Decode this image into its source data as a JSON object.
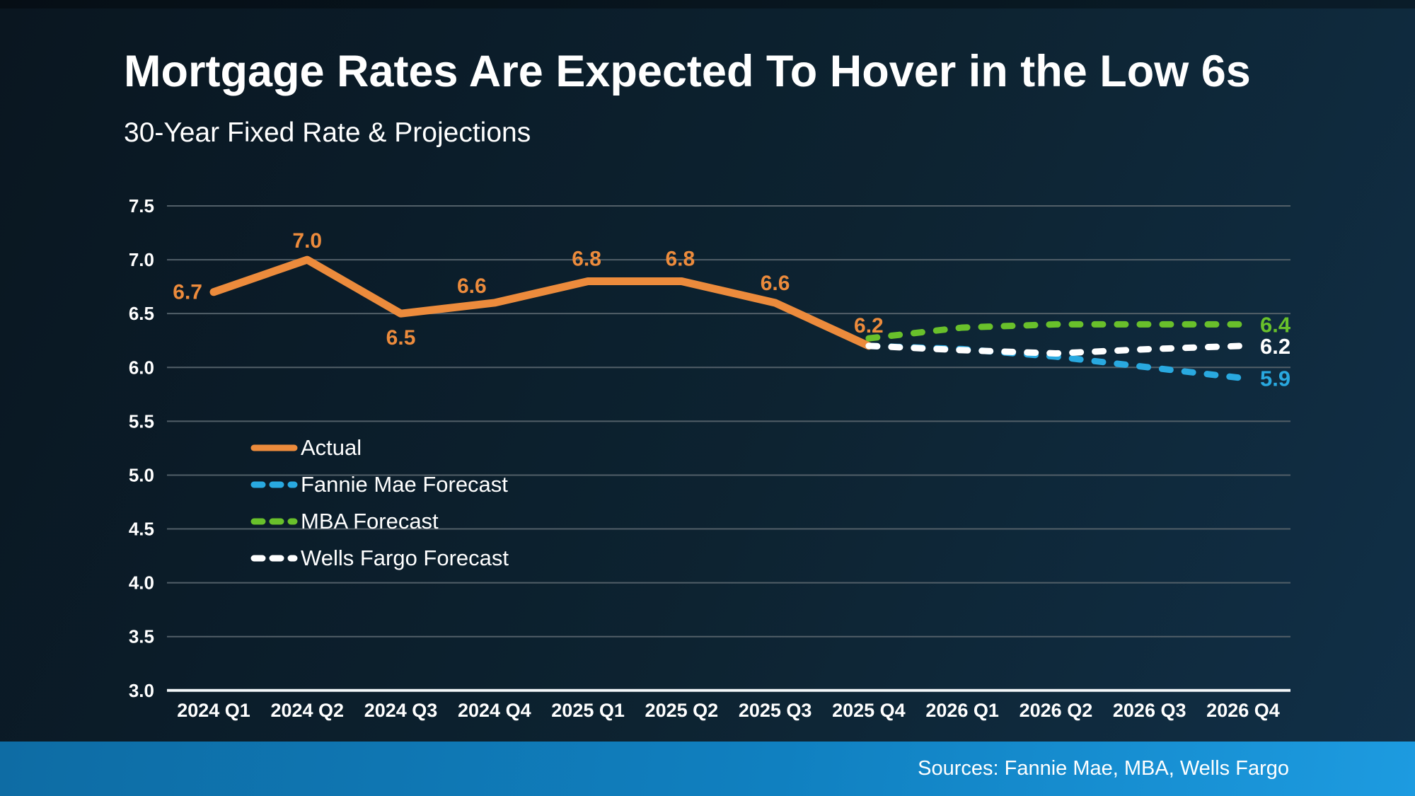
{
  "header": {
    "title": "Mortgage Rates Are Expected To Hover in the Low 6s",
    "subtitle": "30-Year Fixed Rate & Projections"
  },
  "footer": {
    "sources": "Sources: Fannie Mae, MBA, Wells Fargo"
  },
  "colors": {
    "background": "#0C2130",
    "grid": "#525F68",
    "axis": "#F2F6F8",
    "tick_text": "#FFFFFF",
    "accent_orange": "#EC8B3C",
    "accent_blue": "#29A9E0",
    "accent_green": "#69C02B",
    "accent_white": "#FFFFFF",
    "footer_bar_left": "#0E6CA4",
    "footer_bar_right": "#1D9BE0"
  },
  "chart_data": {
    "type": "line",
    "categories": [
      "2024 Q1",
      "2024 Q2",
      "2024 Q3",
      "2024 Q4",
      "2025 Q1",
      "2025 Q2",
      "2025 Q3",
      "2025 Q4",
      "2026 Q1",
      "2026 Q2",
      "2026 Q3",
      "2026 Q4"
    ],
    "ylim": [
      3.0,
      7.5
    ],
    "ytick_labels": [
      "7.5",
      "7.0",
      "6.5",
      "6.0",
      "5.5",
      "5.0",
      "4.5",
      "4.0",
      "3.5",
      "3.0"
    ],
    "grid": true,
    "legend_position": "inside-middle-left",
    "series": [
      {
        "name": "Actual",
        "color": "#EC8B3C",
        "dash": false,
        "values": [
          6.7,
          7.0,
          6.5,
          6.6,
          6.8,
          6.8,
          6.6,
          6.2,
          null,
          null,
          null,
          null
        ],
        "point_labels": [
          "6.7",
          "7.0",
          "6.5",
          "6.6",
          "6.8",
          "6.8",
          "6.6",
          "6.2"
        ]
      },
      {
        "name": "Fannie Mae Forecast",
        "color": "#29A9E0",
        "dash": true,
        "values": [
          null,
          null,
          null,
          null,
          null,
          null,
          null,
          6.2,
          6.17,
          6.1,
          6.0,
          5.9
        ],
        "end_label": "5.9"
      },
      {
        "name": "MBA Forecast",
        "color": "#69C02B",
        "dash": true,
        "values": [
          null,
          null,
          null,
          null,
          null,
          null,
          null,
          6.27,
          6.37,
          6.4,
          6.4,
          6.4
        ],
        "end_label": "6.4"
      },
      {
        "name": "Wells Fargo Forecast",
        "color": "#FFFFFF",
        "dash": true,
        "values": [
          null,
          null,
          null,
          null,
          null,
          null,
          null,
          6.2,
          6.16,
          6.13,
          6.17,
          6.2
        ],
        "end_label": "6.2"
      }
    ]
  }
}
